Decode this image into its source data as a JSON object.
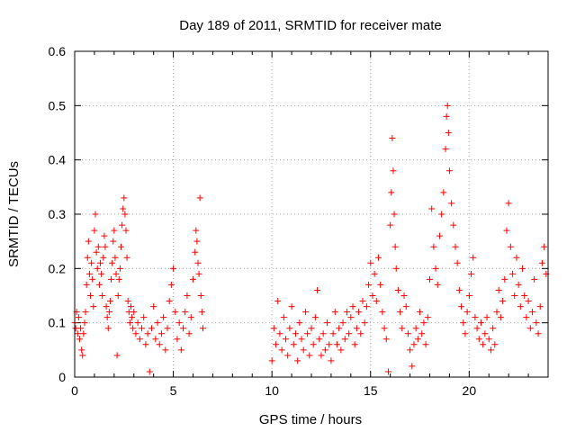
{
  "chart_data": {
    "type": "scatter",
    "title": "Day 189 of 2011, SRMTID for receiver mate",
    "xlabel": "GPS time / hours",
    "ylabel": "SRMTID / TECUs",
    "xlim": [
      0,
      24
    ],
    "ylim": [
      0,
      0.6
    ],
    "x_ticks": [
      0,
      5,
      10,
      15,
      20
    ],
    "x_tick_labels": [
      "0",
      "5",
      "10",
      "15",
      "20"
    ],
    "y_ticks": [
      0,
      0.1,
      0.2,
      0.3,
      0.4,
      0.5,
      0.6
    ],
    "y_tick_labels": [
      "0",
      "0.1",
      "0.2",
      "0.3",
      "0.4",
      "0.5",
      "0.6"
    ],
    "grid": true,
    "marker": "+",
    "series": [
      {
        "name": "SRMTID",
        "color": "#ff0000",
        "points": [
          [
            0.0,
            0.1
          ],
          [
            0.05,
            0.09
          ],
          [
            0.1,
            0.12
          ],
          [
            0.15,
            0.08
          ],
          [
            0.2,
            0.11
          ],
          [
            0.25,
            0.07
          ],
          [
            0.3,
            0.09
          ],
          [
            0.35,
            0.05
          ],
          [
            0.4,
            0.04
          ],
          [
            0.45,
            0.08
          ],
          [
            0.5,
            0.1
          ],
          [
            0.55,
            0.12
          ],
          [
            0.6,
            0.17
          ],
          [
            0.65,
            0.22
          ],
          [
            0.7,
            0.25
          ],
          [
            0.75,
            0.19
          ],
          [
            0.8,
            0.15
          ],
          [
            0.85,
            0.21
          ],
          [
            0.9,
            0.18
          ],
          [
            0.95,
            0.13
          ],
          [
            1.0,
            0.27
          ],
          [
            1.05,
            0.3
          ],
          [
            1.1,
            0.23
          ],
          [
            1.15,
            0.2
          ],
          [
            1.2,
            0.24
          ],
          [
            1.25,
            0.17
          ],
          [
            1.3,
            0.21
          ],
          [
            1.35,
            0.19
          ],
          [
            1.4,
            0.15
          ],
          [
            1.45,
            0.22
          ],
          [
            1.5,
            0.26
          ],
          [
            1.55,
            0.24
          ],
          [
            1.6,
            0.13
          ],
          [
            1.65,
            0.11
          ],
          [
            1.7,
            0.09
          ],
          [
            1.75,
            0.12
          ],
          [
            1.8,
            0.14
          ],
          [
            1.85,
            0.18
          ],
          [
            1.9,
            0.21
          ],
          [
            1.95,
            0.25
          ],
          [
            2.0,
            0.27
          ],
          [
            2.05,
            0.22
          ],
          [
            2.1,
            0.19
          ],
          [
            2.15,
            0.04
          ],
          [
            2.2,
            0.15
          ],
          [
            2.25,
            0.18
          ],
          [
            2.3,
            0.2
          ],
          [
            2.35,
            0.24
          ],
          [
            2.4,
            0.28
          ],
          [
            2.45,
            0.31
          ],
          [
            2.5,
            0.33
          ],
          [
            2.55,
            0.3
          ],
          [
            2.6,
            0.27
          ],
          [
            2.65,
            0.22
          ],
          [
            2.7,
            0.14
          ],
          [
            2.75,
            0.12
          ],
          [
            2.8,
            0.1
          ],
          [
            2.85,
            0.13
          ],
          [
            2.9,
            0.11
          ],
          [
            2.95,
            0.09
          ],
          [
            3.0,
            0.12
          ],
          [
            3.1,
            0.08
          ],
          [
            3.2,
            0.1
          ],
          [
            3.3,
            0.07
          ],
          [
            3.4,
            0.09
          ],
          [
            3.5,
            0.11
          ],
          [
            3.6,
            0.06
          ],
          [
            3.7,
            0.08
          ],
          [
            3.8,
            0.01
          ],
          [
            3.9,
            0.09
          ],
          [
            4.0,
            0.13
          ],
          [
            4.1,
            0.07
          ],
          [
            4.2,
            0.1
          ],
          [
            4.3,
            0.06
          ],
          [
            4.4,
            0.08
          ],
          [
            4.5,
            0.11
          ],
          [
            4.6,
            0.05
          ],
          [
            4.7,
            0.09
          ],
          [
            4.8,
            0.14
          ],
          [
            4.9,
            0.17
          ],
          [
            5.0,
            0.2
          ],
          [
            5.1,
            0.12
          ],
          [
            5.2,
            0.07
          ],
          [
            5.3,
            0.1
          ],
          [
            5.4,
            0.05
          ],
          [
            5.5,
            0.09
          ],
          [
            5.6,
            0.12
          ],
          [
            5.7,
            0.15
          ],
          [
            5.8,
            0.08
          ],
          [
            5.9,
            0.11
          ],
          [
            6.0,
            0.18
          ],
          [
            6.1,
            0.23
          ],
          [
            6.15,
            0.27
          ],
          [
            6.2,
            0.25
          ],
          [
            6.25,
            0.21
          ],
          [
            6.3,
            0.19
          ],
          [
            6.35,
            0.33
          ],
          [
            6.4,
            0.15
          ],
          [
            6.45,
            0.12
          ],
          [
            6.5,
            0.09
          ],
          [
            10.0,
            0.03
          ],
          [
            10.1,
            0.09
          ],
          [
            10.2,
            0.06
          ],
          [
            10.3,
            0.14
          ],
          [
            10.4,
            0.08
          ],
          [
            10.5,
            0.05
          ],
          [
            10.6,
            0.11
          ],
          [
            10.7,
            0.07
          ],
          [
            10.8,
            0.04
          ],
          [
            10.9,
            0.09
          ],
          [
            11.0,
            0.13
          ],
          [
            11.1,
            0.06
          ],
          [
            11.2,
            0.08
          ],
          [
            11.3,
            0.03
          ],
          [
            11.4,
            0.1
          ],
          [
            11.5,
            0.07
          ],
          [
            11.6,
            0.05
          ],
          [
            11.7,
            0.12
          ],
          [
            11.8,
            0.08
          ],
          [
            11.9,
            0.04
          ],
          [
            12.0,
            0.09
          ],
          [
            12.1,
            0.06
          ],
          [
            12.2,
            0.11
          ],
          [
            12.3,
            0.16
          ],
          [
            12.4,
            0.07
          ],
          [
            12.5,
            0.04
          ],
          [
            12.6,
            0.08
          ],
          [
            12.7,
            0.05
          ],
          [
            12.8,
            0.1
          ],
          [
            12.9,
            0.06
          ],
          [
            13.0,
            0.03
          ],
          [
            13.1,
            0.08
          ],
          [
            13.2,
            0.12
          ],
          [
            13.3,
            0.06
          ],
          [
            13.4,
            0.09
          ],
          [
            13.5,
            0.05
          ],
          [
            13.6,
            0.1
          ],
          [
            13.7,
            0.07
          ],
          [
            13.8,
            0.12
          ],
          [
            13.9,
            0.08
          ],
          [
            14.0,
            0.11
          ],
          [
            14.1,
            0.13
          ],
          [
            14.2,
            0.06
          ],
          [
            14.3,
            0.09
          ],
          [
            14.4,
            0.12
          ],
          [
            14.5,
            0.08
          ],
          [
            14.6,
            0.14
          ],
          [
            14.7,
            0.1
          ],
          [
            14.8,
            0.13
          ],
          [
            14.9,
            0.17
          ],
          [
            15.0,
            0.21
          ],
          [
            15.1,
            0.15
          ],
          [
            15.2,
            0.19
          ],
          [
            15.3,
            0.14
          ],
          [
            15.4,
            0.22
          ],
          [
            15.5,
            0.17
          ],
          [
            15.6,
            0.12
          ],
          [
            15.7,
            0.09
          ],
          [
            15.8,
            0.07
          ],
          [
            15.9,
            0.01
          ],
          [
            16.0,
            0.28
          ],
          [
            16.05,
            0.34
          ],
          [
            16.1,
            0.44
          ],
          [
            16.15,
            0.38
          ],
          [
            16.2,
            0.3
          ],
          [
            16.25,
            0.24
          ],
          [
            16.3,
            0.2
          ],
          [
            16.4,
            0.16
          ],
          [
            16.5,
            0.12
          ],
          [
            16.6,
            0.09
          ],
          [
            16.7,
            0.15
          ],
          [
            16.8,
            0.13
          ],
          [
            16.9,
            0.08
          ],
          [
            17.0,
            0.05
          ],
          [
            17.1,
            0.02
          ],
          [
            17.2,
            0.06
          ],
          [
            17.3,
            0.09
          ],
          [
            17.4,
            0.07
          ],
          [
            17.5,
            0.12
          ],
          [
            17.6,
            0.08
          ],
          [
            17.7,
            0.1
          ],
          [
            17.8,
            0.06
          ],
          [
            17.9,
            0.11
          ],
          [
            18.0,
            0.18
          ],
          [
            18.1,
            0.31
          ],
          [
            18.2,
            0.24
          ],
          [
            18.3,
            0.2
          ],
          [
            18.4,
            0.17
          ],
          [
            18.5,
            0.26
          ],
          [
            18.6,
            0.3
          ],
          [
            18.7,
            0.34
          ],
          [
            18.8,
            0.42
          ],
          [
            18.85,
            0.48
          ],
          [
            18.9,
            0.5
          ],
          [
            18.95,
            0.45
          ],
          [
            19.0,
            0.38
          ],
          [
            19.1,
            0.32
          ],
          [
            19.2,
            0.28
          ],
          [
            19.3,
            0.24
          ],
          [
            19.4,
            0.21
          ],
          [
            19.5,
            0.16
          ],
          [
            19.6,
            0.13
          ],
          [
            19.7,
            0.1
          ],
          [
            19.8,
            0.08
          ],
          [
            19.9,
            0.12
          ],
          [
            20.0,
            0.15
          ],
          [
            20.1,
            0.19
          ],
          [
            20.2,
            0.22
          ],
          [
            20.3,
            0.11
          ],
          [
            20.4,
            0.09
          ],
          [
            20.5,
            0.07
          ],
          [
            20.6,
            0.1
          ],
          [
            20.7,
            0.06
          ],
          [
            20.8,
            0.08
          ],
          [
            20.9,
            0.11
          ],
          [
            21.0,
            0.07
          ],
          [
            21.1,
            0.05
          ],
          [
            21.2,
            0.09
          ],
          [
            21.3,
            0.06
          ],
          [
            21.4,
            0.12
          ],
          [
            21.5,
            0.16
          ],
          [
            21.6,
            0.11
          ],
          [
            21.7,
            0.14
          ],
          [
            21.8,
            0.18
          ],
          [
            21.9,
            0.27
          ],
          [
            22.0,
            0.32
          ],
          [
            22.1,
            0.24
          ],
          [
            22.2,
            0.19
          ],
          [
            22.3,
            0.15
          ],
          [
            22.4,
            0.22
          ],
          [
            22.5,
            0.17
          ],
          [
            22.6,
            0.13
          ],
          [
            22.7,
            0.2
          ],
          [
            22.8,
            0.15
          ],
          [
            22.9,
            0.11
          ],
          [
            23.0,
            0.14
          ],
          [
            23.1,
            0.09
          ],
          [
            23.2,
            0.12
          ],
          [
            23.3,
            0.18
          ],
          [
            23.4,
            0.1
          ],
          [
            23.5,
            0.08
          ],
          [
            23.6,
            0.13
          ],
          [
            23.7,
            0.21
          ],
          [
            23.8,
            0.24
          ],
          [
            23.9,
            0.19
          ]
        ]
      }
    ]
  }
}
